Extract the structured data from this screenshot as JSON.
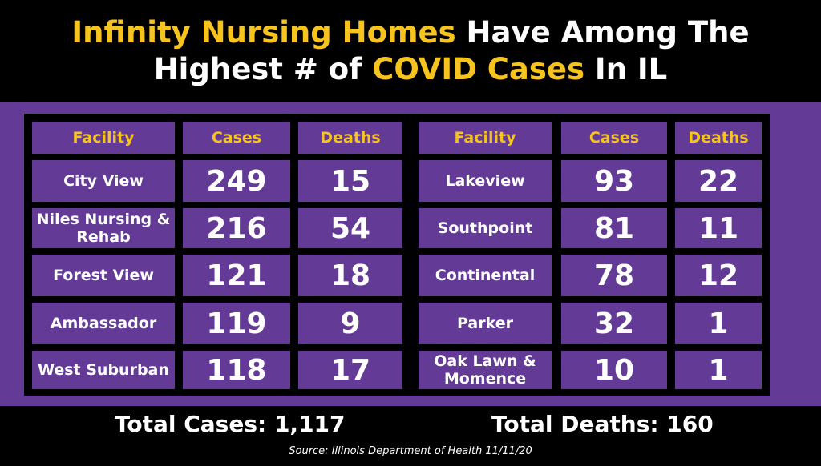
{
  "title": {
    "line1_highlight": "Infinity Nursing Homes",
    "line1_rest": " Have Among The",
    "line2_start": "Highest # of ",
    "line2_highlight": "COVID Cases",
    "line2_end": " In IL"
  },
  "chart_data": {
    "type": "table",
    "columns": [
      "Facility",
      "Cases",
      "Deaths"
    ],
    "rows": [
      {
        "facility": "City View",
        "cases": "249",
        "deaths": "15"
      },
      {
        "facility": "Niles Nursing & Rehab",
        "cases": "216",
        "deaths": "54"
      },
      {
        "facility": "Forest View",
        "cases": "121",
        "deaths": "18"
      },
      {
        "facility": "Ambassador",
        "cases": "119",
        "deaths": "9"
      },
      {
        "facility": "West Suburban",
        "cases": "118",
        "deaths": "17"
      },
      {
        "facility": "Lakeview",
        "cases": "93",
        "deaths": "22"
      },
      {
        "facility": "Southpoint",
        "cases": "81",
        "deaths": "11"
      },
      {
        "facility": "Continental",
        "cases": "78",
        "deaths": "12"
      },
      {
        "facility": "Parker",
        "cases": "32",
        "deaths": "1"
      },
      {
        "facility": "Oak Lawn & Momence",
        "cases": "10",
        "deaths": "1"
      }
    ]
  },
  "totals": {
    "cases_label": "Total Cases: 1,117",
    "deaths_label": "Total Deaths: 160"
  },
  "source": "Source: Illinois Department of Health 11/11/20",
  "colors": {
    "background": "#000000",
    "panel": "#643a97",
    "highlight": "#f7c31d",
    "text": "#ffffff"
  }
}
